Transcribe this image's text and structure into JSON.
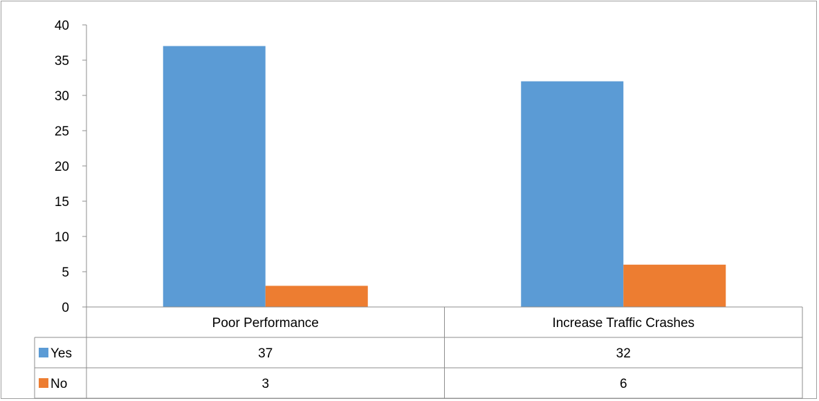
{
  "chart_data": {
    "type": "bar",
    "categories": [
      "Poor Performance",
      "Increase Traffic Crashes"
    ],
    "series": [
      {
        "name": "Yes",
        "values": [
          37,
          32
        ],
        "color": "#5b9bd5"
      },
      {
        "name": "No",
        "values": [
          3,
          6
        ],
        "color": "#ed7d31"
      }
    ],
    "ylim": [
      0,
      40
    ],
    "yticks": [
      0,
      5,
      10,
      15,
      20,
      25,
      30,
      35,
      40
    ],
    "grid": false,
    "legend": "data-table"
  }
}
